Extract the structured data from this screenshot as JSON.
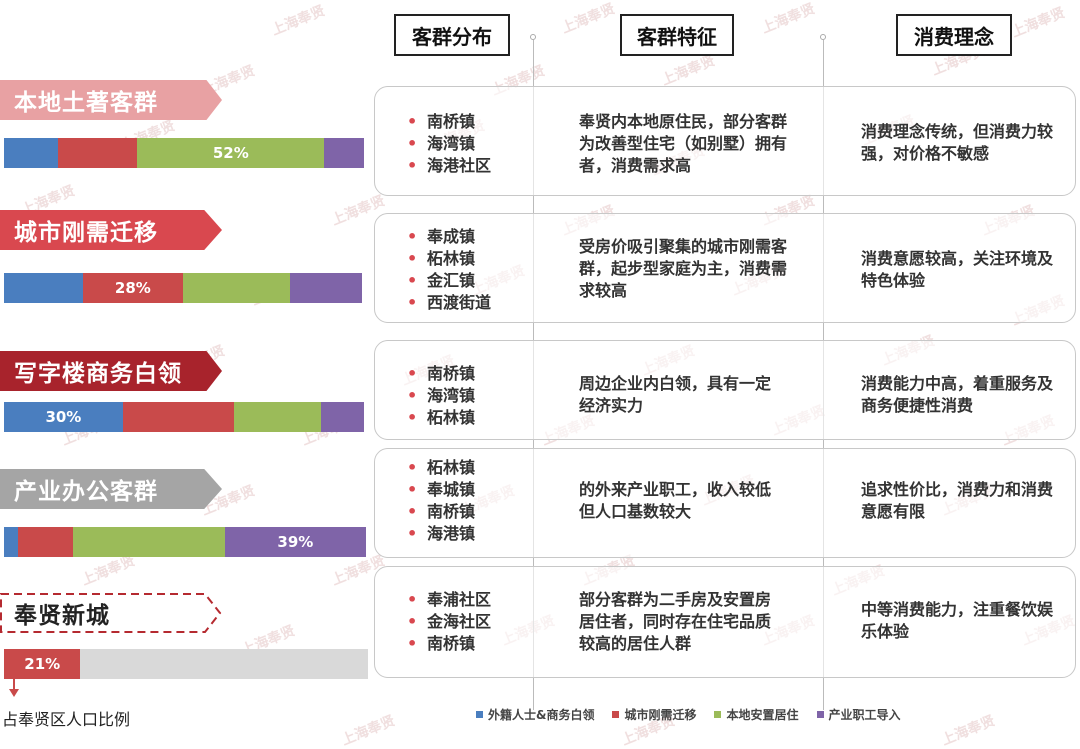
{
  "headers": {
    "distribution": "客群分布",
    "features": "客群特征",
    "philosophy": "消费理念"
  },
  "colors": {
    "foreign_white_collar": "#4a7ebf",
    "urban_migrants": "#c94a4a",
    "local_resettlement": "#9bbb59",
    "industrial_workers": "#7f64a8",
    "remaining": "#d9d9d9"
  },
  "segments": [
    {
      "label": "本地土著客群",
      "bar_label": "52%",
      "districts": [
        "南桥镇",
        "海湾镇",
        "海港社区"
      ],
      "feature": "奉贤内本地原住民，部分客群为改善型住宅（如别墅）拥有者，消费需求高",
      "philosophy": "消费理念传统，但消费力较强，对价格不敏感"
    },
    {
      "label": "城市刚需迁移",
      "bar_label": "28%",
      "districts": [
        "奉成镇",
        "柘林镇",
        "金汇镇",
        "西渡街道"
      ],
      "feature": "受房价吸引聚集的城市刚需客群，起步型家庭为主，消费需求较高",
      "philosophy": "消费意愿较高，关注环境及特色体验"
    },
    {
      "label": "写字楼商务白领",
      "bar_label": "30%",
      "districts": [
        "南桥镇",
        "海湾镇",
        "柘林镇"
      ],
      "feature": "周边企业内白领，具有一定经济实力",
      "philosophy": "消费能力中高，着重服务及商务便捷性消费"
    },
    {
      "label": "产业办公客群",
      "bar_label": "39%",
      "districts": [
        "柘林镇",
        "奉城镇",
        "南桥镇",
        "海港镇"
      ],
      "feature": "的外来产业职工，收入较低但人口基数较大",
      "philosophy": "追求性价比，消费力和消费意愿有限"
    },
    {
      "label": "奉贤新城",
      "bar_label": "21%",
      "districts": [
        "奉浦社区",
        "金海社区",
        "南桥镇"
      ],
      "feature": "部分客群为二手房及安置房居住者，同时存在住宅品质较高的居住人群",
      "philosophy": "中等消费能力，注重餐饮娱乐体验"
    }
  ],
  "legend": [
    "外籍人士&商务白领",
    "城市刚需迁移",
    "本地安置居住",
    "产业职工导入"
  ],
  "footnote": "占奉贤区人口比例",
  "watermark": "上海奉贤",
  "chart_data": {
    "type": "bar",
    "stacked": true,
    "orientation": "horizontal",
    "categories": [
      "本地土著客群",
      "城市刚需迁移",
      "写字楼商务白领",
      "产业办公客群"
    ],
    "series": [
      {
        "name": "外籍人士&商务白领",
        "color": "#4a7ebf",
        "values": [
          15,
          22,
          33,
          4
        ]
      },
      {
        "name": "城市刚需迁移",
        "color": "#c94a4a",
        "values": [
          22,
          28,
          31,
          15
        ]
      },
      {
        "name": "本地安置居住",
        "color": "#9bbb59",
        "values": [
          52,
          30,
          24,
          42
        ]
      },
      {
        "name": "产业职工导入",
        "color": "#7f64a8",
        "values": [
          11,
          20,
          12,
          39
        ]
      }
    ],
    "labels": [
      "52%",
      "28%",
      "30%",
      "39%"
    ],
    "extra_bar": {
      "category": "奉贤新城",
      "value": 21,
      "label": "21%"
    },
    "legend_position": "bottom",
    "xlim": [
      0,
      100
    ]
  }
}
